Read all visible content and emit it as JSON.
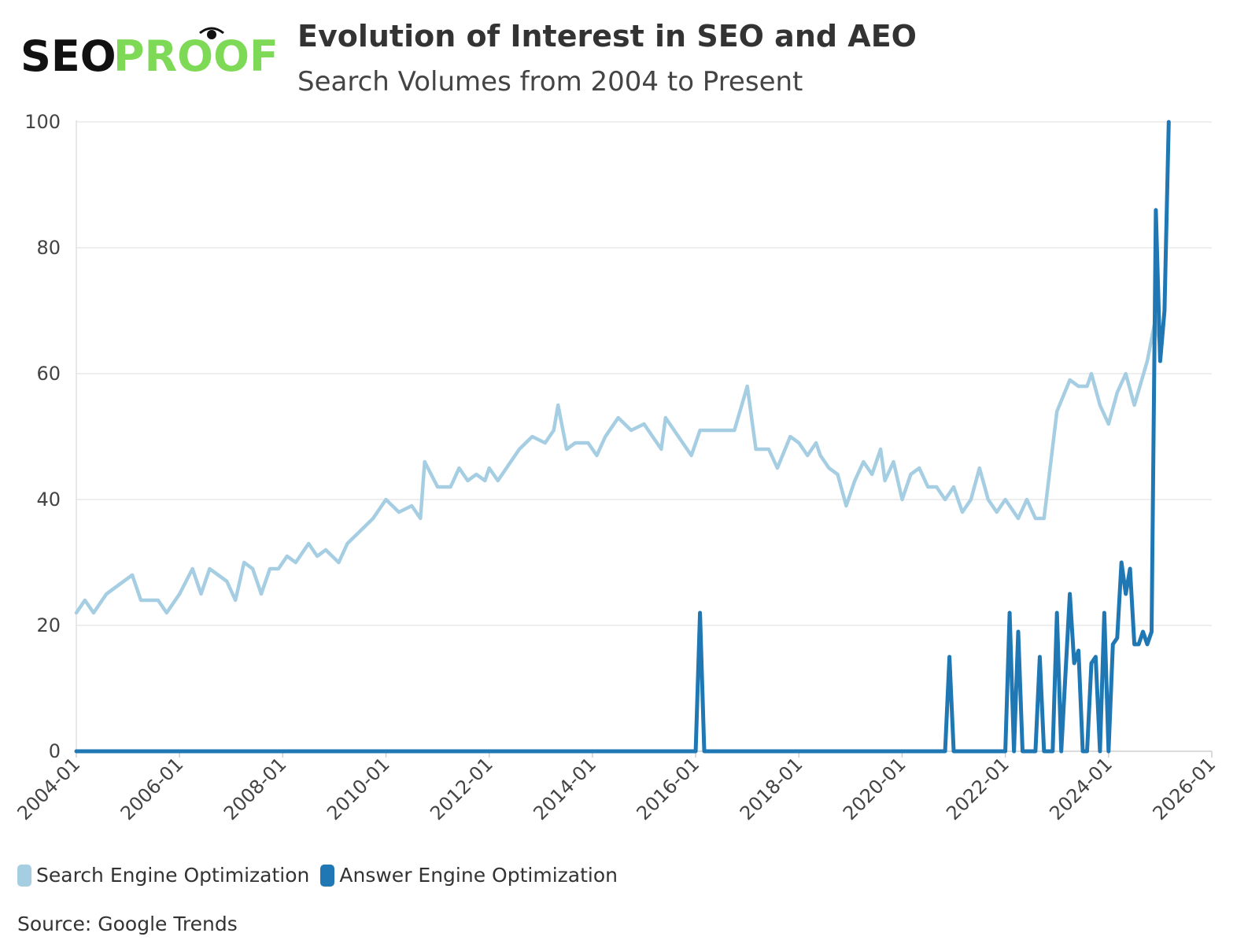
{
  "logo": {
    "text_part1": "SEO",
    "text_part2": "PROOF",
    "color_part1": "#111111",
    "color_part2": "#7ed957"
  },
  "chart_data": {
    "type": "line",
    "title": "Evolution of Interest in SEO and AEO",
    "subtitle": "Search Volumes from 2004 to Present",
    "x_start": "2004-01",
    "x_end": "2026-01",
    "x_ticks": [
      "2004-01",
      "2006-01",
      "2008-01",
      "2010-01",
      "2012-01",
      "2014-01",
      "2016-01",
      "2018-01",
      "2020-01",
      "2022-01",
      "2024-01",
      "2026-01"
    ],
    "ylim": [
      0,
      100
    ],
    "y_ticks": [
      0,
      20,
      40,
      60,
      80,
      100
    ],
    "grid": true,
    "legend_position": "bottom-left",
    "series": [
      {
        "name": "Search Engine Optimization",
        "color": "#a6cee3",
        "points": [
          [
            "2004-01",
            22
          ],
          [
            "2004-03",
            24
          ],
          [
            "2004-05",
            22
          ],
          [
            "2004-08",
            25
          ],
          [
            "2004-12",
            27
          ],
          [
            "2005-02",
            28
          ],
          [
            "2005-04",
            24
          ],
          [
            "2005-08",
            24
          ],
          [
            "2005-10",
            22
          ],
          [
            "2006-01",
            25
          ],
          [
            "2006-04",
            29
          ],
          [
            "2006-06",
            25
          ],
          [
            "2006-08",
            29
          ],
          [
            "2006-12",
            27
          ],
          [
            "2007-02",
            24
          ],
          [
            "2007-04",
            30
          ],
          [
            "2007-06",
            29
          ],
          [
            "2007-08",
            25
          ],
          [
            "2007-10",
            29
          ],
          [
            "2007-12",
            29
          ],
          [
            "2008-02",
            31
          ],
          [
            "2008-04",
            30
          ],
          [
            "2008-07",
            33
          ],
          [
            "2008-09",
            31
          ],
          [
            "2008-11",
            32
          ],
          [
            "2009-02",
            30
          ],
          [
            "2009-04",
            33
          ],
          [
            "2009-07",
            35
          ],
          [
            "2009-10",
            37
          ],
          [
            "2010-01",
            40
          ],
          [
            "2010-04",
            38
          ],
          [
            "2010-07",
            39
          ],
          [
            "2010-09",
            37
          ],
          [
            "2010-10",
            46
          ],
          [
            "2011-01",
            42
          ],
          [
            "2011-04",
            42
          ],
          [
            "2011-06",
            45
          ],
          [
            "2011-08",
            43
          ],
          [
            "2011-10",
            44
          ],
          [
            "2011-12",
            43
          ],
          [
            "2012-01",
            45
          ],
          [
            "2012-03",
            43
          ],
          [
            "2012-05",
            45
          ],
          [
            "2012-08",
            48
          ],
          [
            "2012-11",
            50
          ],
          [
            "2013-02",
            49
          ],
          [
            "2013-04",
            51
          ],
          [
            "2013-05",
            55
          ],
          [
            "2013-07",
            48
          ],
          [
            "2013-09",
            49
          ],
          [
            "2013-12",
            49
          ],
          [
            "2014-02",
            47
          ],
          [
            "2014-04",
            50
          ],
          [
            "2014-07",
            53
          ],
          [
            "2014-10",
            51
          ],
          [
            "2015-01",
            52
          ],
          [
            "2015-03",
            50
          ],
          [
            "2015-05",
            48
          ],
          [
            "2015-06",
            53
          ],
          [
            "2015-09",
            50
          ],
          [
            "2015-12",
            47
          ],
          [
            "2016-02",
            51
          ],
          [
            "2016-06",
            51
          ],
          [
            "2016-10",
            51
          ],
          [
            "2017-01",
            58
          ],
          [
            "2017-03",
            48
          ],
          [
            "2017-06",
            48
          ],
          [
            "2017-08",
            45
          ],
          [
            "2017-11",
            50
          ],
          [
            "2018-01",
            49
          ],
          [
            "2018-03",
            47
          ],
          [
            "2018-05",
            49
          ],
          [
            "2018-06",
            47
          ],
          [
            "2018-08",
            45
          ],
          [
            "2018-10",
            44
          ],
          [
            "2018-12",
            39
          ],
          [
            "2019-02",
            43
          ],
          [
            "2019-04",
            46
          ],
          [
            "2019-06",
            44
          ],
          [
            "2019-08",
            48
          ],
          [
            "2019-09",
            43
          ],
          [
            "2019-11",
            46
          ],
          [
            "2020-01",
            40
          ],
          [
            "2020-03",
            44
          ],
          [
            "2020-05",
            45
          ],
          [
            "2020-07",
            42
          ],
          [
            "2020-09",
            42
          ],
          [
            "2020-11",
            40
          ],
          [
            "2021-01",
            42
          ],
          [
            "2021-03",
            38
          ],
          [
            "2021-05",
            40
          ],
          [
            "2021-07",
            45
          ],
          [
            "2021-09",
            40
          ],
          [
            "2021-11",
            38
          ],
          [
            "2022-01",
            40
          ],
          [
            "2022-04",
            37
          ],
          [
            "2022-06",
            40
          ],
          [
            "2022-08",
            37
          ],
          [
            "2022-10",
            37
          ],
          [
            "2023-01",
            54
          ],
          [
            "2023-04",
            59
          ],
          [
            "2023-06",
            58
          ],
          [
            "2023-08",
            58
          ],
          [
            "2023-09",
            60
          ],
          [
            "2023-11",
            55
          ],
          [
            "2024-01",
            52
          ],
          [
            "2024-03",
            57
          ],
          [
            "2024-05",
            60
          ],
          [
            "2024-07",
            55
          ],
          [
            "2024-10",
            62
          ],
          [
            "2024-12",
            69
          ],
          [
            "2025-01",
            64
          ]
        ]
      },
      {
        "name": "Answer Engine Optimization",
        "color": "#1f78b4",
        "points": [
          [
            "2004-01",
            0
          ],
          [
            "2016-01",
            0
          ],
          [
            "2016-02",
            22
          ],
          [
            "2016-03",
            0
          ],
          [
            "2020-11",
            0
          ],
          [
            "2020-12",
            15
          ],
          [
            "2021-01",
            0
          ],
          [
            "2022-01",
            0
          ],
          [
            "2022-02",
            22
          ],
          [
            "2022-03",
            0
          ],
          [
            "2022-04",
            19
          ],
          [
            "2022-05",
            0
          ],
          [
            "2022-08",
            0
          ],
          [
            "2022-09",
            15
          ],
          [
            "2022-10",
            0
          ],
          [
            "2022-12",
            0
          ],
          [
            "2023-01",
            22
          ],
          [
            "2023-02",
            0
          ],
          [
            "2023-04",
            25
          ],
          [
            "2023-05",
            14
          ],
          [
            "2023-06",
            16
          ],
          [
            "2023-07",
            0
          ],
          [
            "2023-08",
            0
          ],
          [
            "2023-09",
            14
          ],
          [
            "2023-10",
            15
          ],
          [
            "2023-11",
            0
          ],
          [
            "2023-12",
            22
          ],
          [
            "2024-01",
            0
          ],
          [
            "2024-02",
            17
          ],
          [
            "2024-03",
            18
          ],
          [
            "2024-04",
            30
          ],
          [
            "2024-05",
            25
          ],
          [
            "2024-06",
            29
          ],
          [
            "2024-07",
            17
          ],
          [
            "2024-08",
            17
          ],
          [
            "2024-09",
            19
          ],
          [
            "2024-10",
            17
          ],
          [
            "2024-11",
            19
          ],
          [
            "2024-12",
            86
          ],
          [
            "2025-01",
            62
          ],
          [
            "2025-02",
            70
          ],
          [
            "2025-03",
            100
          ]
        ]
      }
    ],
    "source": "Source: Google Trends"
  }
}
